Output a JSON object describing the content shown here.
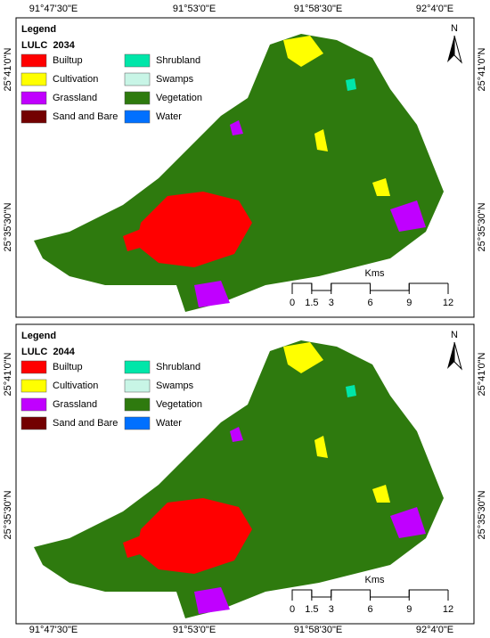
{
  "top_labels": [
    "91°47'30\"E",
    "91°53'0\"E",
    "91°58'30\"E",
    "92°4'0\"E"
  ],
  "bottom_labels": [
    "91°47'30\"E",
    "91°53'0\"E",
    "91°58'30\"E",
    "92°4'0\"E"
  ],
  "panels": [
    {
      "title": "Legend",
      "subtitle": "LULC  2034",
      "north": "N",
      "left_labels": [
        "25°41'0\"N",
        "25°35'30\"N"
      ],
      "right_labels": [
        "25°41'0\"N",
        "25°35'30\"N"
      ],
      "legend": [
        {
          "label": "Builtup",
          "color": "#ff0000"
        },
        {
          "label": "Cultivation",
          "color": "#ffff00"
        },
        {
          "label": "Grassland",
          "color": "#c000ff"
        },
        {
          "label": "Sand and Bare",
          "color": "#730000"
        },
        {
          "label": "Shrubland",
          "color": "#00e6a9"
        },
        {
          "label": "Swamps",
          "color": "#c8f5e6"
        },
        {
          "label": "Vegetation",
          "color": "#2e7a0e"
        },
        {
          "label": "Water",
          "color": "#0070ff"
        }
      ],
      "scale": {
        "unit": "Kms",
        "ticks": [
          0,
          1.5,
          3,
          6,
          9,
          12
        ]
      }
    },
    {
      "title": "Legend",
      "subtitle": "LULC  2044",
      "north": "N",
      "left_labels": [
        "25°41'0\"N",
        "25°35'30\"N"
      ],
      "right_labels": [
        "25°41'0\"N",
        "25°35'30\"N"
      ],
      "legend": [
        {
          "label": "Builtup",
          "color": "#ff0000"
        },
        {
          "label": "Cultivation",
          "color": "#ffff00"
        },
        {
          "label": "Grassland",
          "color": "#c000ff"
        },
        {
          "label": "Sand and Bare",
          "color": "#730000"
        },
        {
          "label": "Shrubland",
          "color": "#00e6a9"
        },
        {
          "label": "Swamps",
          "color": "#c8f5e6"
        },
        {
          "label": "Vegetation",
          "color": "#2e7a0e"
        },
        {
          "label": "Water",
          "color": "#0070ff"
        }
      ],
      "scale": {
        "unit": "Kms",
        "ticks": [
          0,
          1.5,
          3,
          6,
          9,
          12
        ]
      }
    }
  ]
}
